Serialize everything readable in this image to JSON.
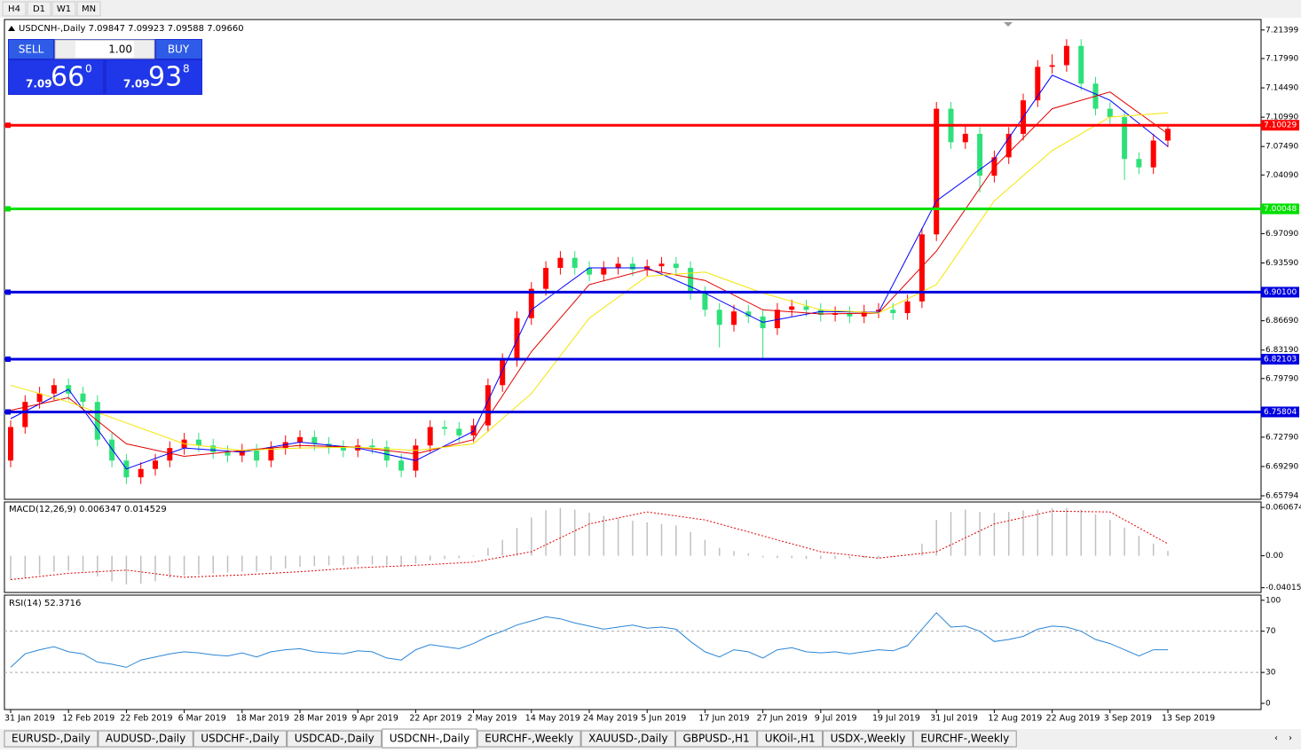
{
  "toolbar": {
    "buttons": [
      "H4",
      "D1",
      "W1",
      "MN"
    ]
  },
  "trade_panel": {
    "sell": "SELL",
    "buy": "BUY",
    "lot": "1.00",
    "sell_big": "7.09",
    "sell_pips": "66",
    "sell_frac": "0",
    "buy_big": "7.09",
    "buy_pips": "93",
    "buy_frac": "8"
  },
  "tabs": {
    "items": [
      "EURUSD-,Daily",
      "AUDUSD-,Daily",
      "USDCHF-,Daily",
      "USDCAD-,Daily",
      "USDCNH-,Daily",
      "EURCHF-,Weekly",
      "XAUUSD-,Daily",
      "GBPUSD-,H1",
      "UKOil-,H1",
      "USDX-,Weekly",
      "EURCHF-,Weekly"
    ],
    "active": 4
  },
  "chart_data": [
    {
      "type": "candlestick",
      "title": "USDCNH-,Daily 7.09847 7.09923 7.09588 7.09660",
      "up_color": "#ff0000",
      "down_color": "#2ee07a",
      "categories": [
        "31 Jan 2019",
        null,
        null,
        null,
        "12 Feb 2019",
        null,
        null,
        null,
        "22 Feb 2019",
        null,
        null,
        null,
        "6 Mar 2019",
        null,
        null,
        null,
        "18 Mar 2019",
        null,
        null,
        null,
        "28 Mar 2019",
        null,
        null,
        null,
        "9 Apr 2019",
        null,
        null,
        null,
        "22 Apr 2019",
        null,
        null,
        null,
        "2 May 2019",
        null,
        null,
        null,
        "14 May 2019",
        null,
        null,
        null,
        "24 May 2019",
        null,
        null,
        null,
        "5 Jun 2019",
        null,
        null,
        null,
        "17 Jun 2019",
        null,
        null,
        null,
        "27 Jun 2019",
        null,
        null,
        null,
        "9 Jul 2019",
        null,
        null,
        null,
        "19 Jul 2019",
        null,
        null,
        null,
        "31 Jul 2019",
        null,
        null,
        null,
        "12 Aug 2019",
        null,
        null,
        null,
        "22 Aug 2019",
        null,
        null,
        null,
        "3 Sep 2019",
        null,
        null,
        null,
        "13 Sep 2019"
      ],
      "open": [
        6.7,
        6.74,
        6.77,
        6.78,
        6.79,
        6.78,
        6.77,
        6.725,
        6.7,
        6.68,
        6.69,
        6.7,
        6.715,
        6.725,
        6.718,
        6.71,
        6.706,
        6.712,
        6.7,
        6.715,
        6.722,
        6.728,
        6.72,
        6.716,
        6.712,
        6.718,
        6.716,
        6.7,
        6.688,
        6.718,
        6.74,
        6.738,
        6.73,
        6.742,
        6.79,
        6.82,
        6.87,
        6.905,
        6.93,
        6.942,
        6.93,
        6.922,
        6.93,
        6.935,
        6.928,
        6.932,
        6.935,
        6.93,
        6.9,
        6.88,
        6.862,
        6.878,
        6.872,
        6.858,
        6.88,
        6.884,
        6.88,
        6.874,
        6.876,
        6.872,
        6.878,
        6.88,
        6.876,
        6.89,
        6.97,
        7.12,
        7.08,
        7.09,
        7.04,
        7.062,
        7.09,
        7.13,
        7.17,
        7.172,
        7.195,
        7.15,
        7.12,
        7.11,
        7.06,
        7.05,
        7.082
      ],
      "high": [
        6.748,
        6.778,
        6.788,
        6.798,
        6.798,
        6.788,
        6.778,
        6.733,
        6.708,
        6.698,
        6.708,
        6.723,
        6.733,
        6.733,
        6.726,
        6.718,
        6.72,
        6.72,
        6.723,
        6.73,
        6.736,
        6.736,
        6.728,
        6.724,
        6.726,
        6.726,
        6.724,
        6.708,
        6.726,
        6.748,
        6.748,
        6.746,
        6.75,
        6.798,
        6.828,
        6.878,
        6.913,
        6.938,
        6.95,
        6.95,
        6.938,
        6.938,
        6.943,
        6.943,
        6.94,
        6.943,
        6.943,
        6.938,
        6.908,
        6.888,
        6.886,
        6.886,
        6.88,
        6.888,
        6.892,
        6.892,
        6.888,
        6.884,
        6.884,
        6.886,
        6.888,
        6.888,
        6.898,
        6.978,
        7.128,
        7.128,
        7.1,
        7.098,
        7.07,
        7.098,
        7.138,
        7.178,
        7.185,
        7.203,
        7.203,
        7.158,
        7.128,
        7.118,
        7.068,
        7.09,
        7.1
      ],
      "low": [
        6.692,
        6.732,
        6.762,
        6.772,
        6.772,
        6.762,
        6.717,
        6.692,
        6.672,
        6.672,
        6.682,
        6.692,
        6.707,
        6.71,
        6.702,
        6.698,
        6.698,
        6.692,
        6.692,
        6.707,
        6.714,
        6.712,
        6.708,
        6.704,
        6.704,
        6.708,
        6.692,
        6.68,
        6.68,
        6.71,
        6.73,
        6.722,
        6.722,
        6.734,
        6.782,
        6.812,
        6.862,
        6.897,
        6.922,
        6.922,
        6.914,
        6.914,
        6.922,
        6.92,
        6.92,
        6.924,
        6.922,
        6.892,
        6.872,
        6.835,
        6.854,
        6.864,
        6.82,
        6.85,
        6.872,
        6.872,
        6.866,
        6.866,
        6.864,
        6.864,
        6.87,
        6.868,
        6.868,
        6.882,
        6.962,
        7.072,
        7.072,
        7.02,
        7.032,
        7.054,
        7.082,
        7.122,
        7.162,
        7.164,
        7.142,
        7.112,
        7.102,
        7.035,
        7.042,
        7.042,
        7.074
      ],
      "close": [
        6.74,
        6.77,
        6.78,
        6.79,
        6.78,
        6.77,
        6.725,
        6.7,
        6.68,
        6.69,
        6.7,
        6.715,
        6.725,
        6.718,
        6.71,
        6.706,
        6.712,
        6.7,
        6.715,
        6.722,
        6.728,
        6.72,
        6.716,
        6.712,
        6.718,
        6.716,
        6.7,
        6.688,
        6.718,
        6.74,
        6.738,
        6.73,
        6.742,
        6.79,
        6.82,
        6.87,
        6.905,
        6.93,
        6.942,
        6.93,
        6.922,
        6.93,
        6.935,
        6.928,
        6.932,
        6.935,
        6.93,
        6.9,
        6.88,
        6.862,
        6.878,
        6.872,
        6.858,
        6.88,
        6.884,
        6.88,
        6.874,
        6.876,
        6.872,
        6.878,
        6.88,
        6.876,
        6.89,
        6.97,
        7.12,
        7.08,
        7.09,
        7.04,
        7.062,
        7.09,
        7.13,
        7.17,
        7.172,
        7.195,
        7.15,
        7.12,
        7.11,
        7.06,
        7.05,
        7.082,
        7.096
      ],
      "series": [
        {
          "color": "#0000ff",
          "x": [
            0,
            4,
            8,
            12,
            16,
            20,
            24,
            28,
            32,
            36,
            40,
            44,
            48,
            52,
            56,
            60,
            64,
            68,
            72,
            76,
            80
          ],
          "values": [
            6.75,
            6.785,
            6.69,
            6.715,
            6.71,
            6.722,
            6.715,
            6.7,
            6.735,
            6.88,
            6.93,
            6.93,
            6.9,
            6.865,
            6.878,
            6.877,
            7.01,
            7.06,
            7.16,
            7.13,
            7.075
          ]
        },
        {
          "color": "#e00000",
          "x": [
            0,
            4,
            8,
            12,
            16,
            20,
            24,
            28,
            32,
            36,
            40,
            44,
            48,
            52,
            56,
            60,
            64,
            68,
            72,
            76,
            80
          ],
          "values": [
            6.76,
            6.775,
            6.72,
            6.705,
            6.712,
            6.718,
            6.716,
            6.708,
            6.725,
            6.83,
            6.91,
            6.928,
            6.915,
            6.88,
            6.875,
            6.876,
            6.95,
            7.05,
            7.12,
            7.14,
            7.09
          ]
        },
        {
          "color": "#f5e400",
          "x": [
            0,
            4,
            8,
            12,
            16,
            20,
            24,
            28,
            32,
            36,
            40,
            44,
            48,
            52,
            56,
            60,
            64,
            68,
            72,
            76,
            80
          ],
          "values": [
            6.79,
            6.77,
            6.745,
            6.72,
            6.712,
            6.715,
            6.716,
            6.712,
            6.72,
            6.78,
            6.87,
            6.92,
            6.925,
            6.9,
            6.88,
            6.876,
            6.91,
            7.01,
            7.07,
            7.11,
            7.115
          ]
        }
      ],
      "levels": [
        {
          "value": 7.10029,
          "color": "#ff0000"
        },
        {
          "value": 7.00048,
          "color": "#00e000"
        },
        {
          "value": 6.901,
          "label": "6.90100",
          "color": "#0000e0"
        },
        {
          "value": 6.82103,
          "color": "#0000e0"
        },
        {
          "value": 6.75804,
          "color": "#0000e0"
        }
      ],
      "ylim": [
        6.6537,
        7.2265
      ],
      "yticks": [
        7.21399,
        {
          "value": 7.1799,
          "label": "7.17990"
        },
        {
          "value": 7.1449,
          "label": "7.14490"
        },
        {
          "value": 7.1099,
          "label": "7.10990"
        },
        {
          "value": 7.0749,
          "label": "7.07490"
        },
        {
          "value": 7.0409,
          "label": "7.04090"
        },
        {
          "value": 6.9709,
          "label": "6.97090"
        },
        {
          "value": 6.9359,
          "label": "6.93590"
        },
        {
          "value": 6.8669,
          "label": "6.86690"
        },
        {
          "value": 6.8319,
          "label": "6.83190"
        },
        {
          "value": 6.7979,
          "label": "6.79790"
        },
        {
          "value": 6.7279,
          "label": "6.72790"
        },
        {
          "value": 6.6929,
          "label": "6.69290"
        },
        6.65794
      ]
    },
    {
      "type": "macd",
      "title": "MACD(12,26,9) 0.006347 0.014529",
      "values": [
        -0.03,
        -0.028,
        -0.024,
        -0.02,
        -0.019,
        -0.02,
        -0.026,
        -0.032,
        -0.036,
        -0.035,
        -0.032,
        -0.028,
        -0.025,
        -0.024,
        -0.022,
        -0.021,
        -0.02,
        -0.02,
        -0.018,
        -0.016,
        -0.014,
        -0.013,
        -0.012,
        -0.012,
        -0.011,
        -0.011,
        -0.012,
        -0.013,
        -0.01,
        -0.006,
        -0.004,
        -0.003,
        -0.001,
        0.01,
        0.02,
        0.035,
        0.048,
        0.057,
        0.06,
        0.058,
        0.054,
        0.05,
        0.047,
        0.044,
        0.042,
        0.04,
        0.038,
        0.03,
        0.02,
        0.01,
        0.006,
        0.003,
        -0.002,
        -0.003,
        -0.003,
        -0.004,
        -0.004,
        -0.004,
        -0.004,
        -0.003,
        -0.003,
        -0.002,
        0,
        0.015,
        0.045,
        0.055,
        0.058,
        0.055,
        0.054,
        0.055,
        0.057,
        0.058,
        0.06,
        0.06,
        0.058,
        0.052,
        0.045,
        0.035,
        0.025,
        0.015,
        0.006
      ],
      "color": "#c0c0c0",
      "signal": {
        "color": "#e00000",
        "x": [
          0,
          4,
          8,
          12,
          16,
          20,
          24,
          28,
          32,
          36,
          40,
          44,
          48,
          52,
          56,
          60,
          64,
          68,
          72,
          76,
          80
        ],
        "values": [
          -0.03,
          -0.022,
          -0.018,
          -0.027,
          -0.024,
          -0.02,
          -0.015,
          -0.012,
          -0.008,
          0.005,
          0.04,
          0.055,
          0.045,
          0.025,
          0.005,
          -0.003,
          0.005,
          0.04,
          0.056,
          0.055,
          0.015
        ]
      },
      "ylim": [
        -0.0461,
        0.0675
      ],
      "yticks": [
        0.060674,
        {
          "value": 0,
          "label": "0.00"
        },
        -0.040152
      ]
    },
    {
      "type": "rsi",
      "title": "RSI(14) 52.3716",
      "color": "#2a86d8",
      "values": [
        35,
        48,
        52,
        55,
        50,
        48,
        40,
        38,
        35,
        42,
        45,
        48,
        50,
        49,
        47,
        46,
        49,
        45,
        50,
        52,
        53,
        50,
        49,
        48,
        51,
        50,
        44,
        42,
        52,
        57,
        55,
        53,
        58,
        65,
        70,
        76,
        80,
        84,
        82,
        78,
        75,
        72,
        74,
        76,
        73,
        74,
        72,
        60,
        50,
        45,
        52,
        50,
        44,
        52,
        54,
        50,
        49,
        50,
        48,
        50,
        52,
        51,
        56,
        72,
        88,
        74,
        75,
        70,
        60,
        62,
        65,
        72,
        75,
        74,
        70,
        62,
        58,
        52,
        46,
        52,
        52
      ],
      "ylim": [
        -6,
        105
      ],
      "yticks": [
        100,
        70,
        30,
        0
      ]
    }
  ]
}
